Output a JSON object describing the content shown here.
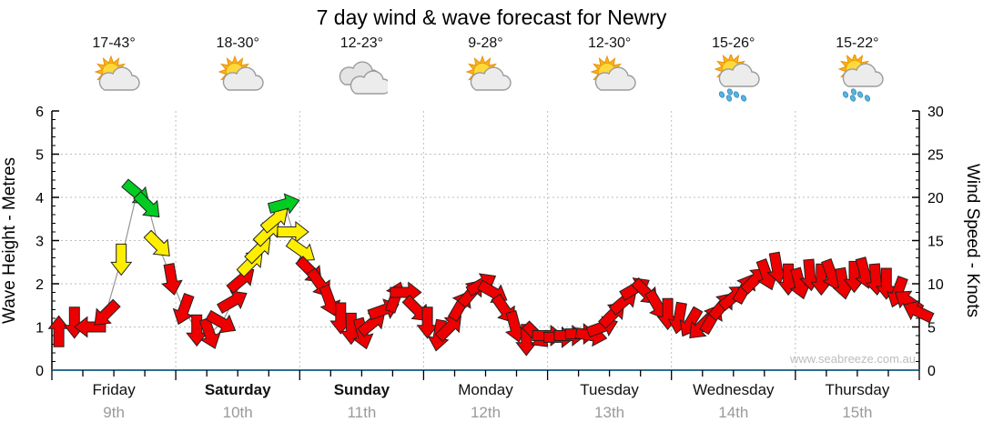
{
  "title": "7 day wind & wave forecast for Newry",
  "watermark": "www.seabreeze.com.au",
  "days": [
    {
      "name": "Friday",
      "date": "9th",
      "temps": "17-43°",
      "icon": "partly-cloudy",
      "weekend": false
    },
    {
      "name": "Saturday",
      "date": "10th",
      "temps": "18-30°",
      "icon": "partly-cloudy",
      "weekend": true
    },
    {
      "name": "Sunday",
      "date": "11th",
      "temps": "12-23°",
      "icon": "cloudy",
      "weekend": true
    },
    {
      "name": "Monday",
      "date": "12th",
      "temps": "9-28°",
      "icon": "partly-cloudy",
      "weekend": false
    },
    {
      "name": "Tuesday",
      "date": "13th",
      "temps": "12-30°",
      "icon": "partly-cloudy",
      "weekend": false
    },
    {
      "name": "Wednesday",
      "date": "14th",
      "temps": "15-26°",
      "icon": "showers",
      "weekend": false
    },
    {
      "name": "Thursday",
      "date": "15th",
      "temps": "15-22°",
      "icon": "showers",
      "weekend": false
    }
  ],
  "chart_data": {
    "type": "wind-arrow-timeseries",
    "title": "7 day wind & wave forecast for Newry",
    "left_axis": {
      "label": "Wave Height - Metres",
      "min": 0,
      "max": 6,
      "major_ticks": [
        0,
        1,
        2,
        3,
        4,
        5,
        6
      ]
    },
    "right_axis": {
      "label": "Wind Speed - Knots",
      "min": 0,
      "max": 30,
      "major_ticks": [
        0,
        5,
        10,
        15,
        20,
        25,
        30
      ]
    },
    "x_categories": [
      "Friday 9th",
      "Saturday 10th",
      "Sunday 11th",
      "Monday 12th",
      "Tuesday 13th",
      "Wednesday 14th",
      "Thursday 15th"
    ],
    "grid": "dotted",
    "band_names": {
      "L": "light",
      "M": "moderate",
      "F": "fresh"
    },
    "speed_colors": {
      "L": "#EE0000",
      "M": "#FFEE00",
      "F": "#00CC22"
    },
    "axis_line_color": "#2E6E8E",
    "arrows_format": [
      "t_fraction_of_week",
      "knots",
      "dir_deg_cw_from_east",
      "band"
    ],
    "arrows": [
      [
        0.008,
        4.5,
        270,
        "L"
      ],
      [
        0.026,
        5.5,
        90,
        "L"
      ],
      [
        0.044,
        5,
        180,
        "L"
      ],
      [
        0.062,
        6.5,
        135,
        "L"
      ],
      [
        0.08,
        12.8,
        90,
        "M"
      ],
      [
        0.098,
        20.5,
        40,
        "F"
      ],
      [
        0.111,
        19,
        45,
        "F"
      ],
      [
        0.123,
        14.5,
        45,
        "M"
      ],
      [
        0.138,
        10.5,
        80,
        "L"
      ],
      [
        0.152,
        7,
        110,
        "L"
      ],
      [
        0.167,
        4.6,
        90,
        "L"
      ],
      [
        0.182,
        4.2,
        70,
        "L"
      ],
      [
        0.196,
        5.5,
        30,
        "L"
      ],
      [
        0.209,
        8,
        330,
        "L"
      ],
      [
        0.219,
        10.5,
        320,
        "L"
      ],
      [
        0.23,
        12.5,
        315,
        "M"
      ],
      [
        0.239,
        14,
        315,
        "M"
      ],
      [
        0.249,
        16,
        315,
        "M"
      ],
      [
        0.258,
        17.5,
        320,
        "M"
      ],
      [
        0.268,
        19.2,
        345,
        "F"
      ],
      [
        0.278,
        16,
        0,
        "M"
      ],
      [
        0.288,
        13.8,
        35,
        "M"
      ],
      [
        0.298,
        11.5,
        45,
        "L"
      ],
      [
        0.309,
        10,
        55,
        "L"
      ],
      [
        0.32,
        8,
        70,
        "L"
      ],
      [
        0.333,
        6,
        90,
        "L"
      ],
      [
        0.345,
        4.8,
        90,
        "L"
      ],
      [
        0.358,
        4.2,
        75,
        "L"
      ],
      [
        0.37,
        5.5,
        320,
        "L"
      ],
      [
        0.383,
        7,
        340,
        "L"
      ],
      [
        0.396,
        8.5,
        290,
        "L"
      ],
      [
        0.408,
        9,
        0,
        "L"
      ],
      [
        0.421,
        7,
        45,
        "L"
      ],
      [
        0.433,
        5.5,
        90,
        "L"
      ],
      [
        0.446,
        4,
        100,
        "L"
      ],
      [
        0.459,
        5,
        315,
        "L"
      ],
      [
        0.471,
        7.5,
        300,
        "L"
      ],
      [
        0.484,
        9,
        310,
        "L"
      ],
      [
        0.496,
        10,
        330,
        "L"
      ],
      [
        0.509,
        9,
        30,
        "L"
      ],
      [
        0.522,
        7,
        55,
        "L"
      ],
      [
        0.534,
        5,
        75,
        "L"
      ],
      [
        0.547,
        3.5,
        90,
        "L"
      ],
      [
        0.559,
        4,
        45,
        "L"
      ],
      [
        0.572,
        4,
        0,
        "L"
      ],
      [
        0.585,
        3.8,
        0,
        "L"
      ],
      [
        0.597,
        4,
        0,
        "L"
      ],
      [
        0.61,
        4.2,
        0,
        "L"
      ],
      [
        0.622,
        4,
        10,
        "L"
      ],
      [
        0.635,
        5,
        340,
        "L"
      ],
      [
        0.647,
        6.5,
        315,
        "L"
      ],
      [
        0.66,
        8,
        320,
        "L"
      ],
      [
        0.673,
        9.5,
        330,
        "L"
      ],
      [
        0.685,
        9,
        45,
        "L"
      ],
      [
        0.698,
        7.5,
        60,
        "L"
      ],
      [
        0.71,
        6.5,
        90,
        "L"
      ],
      [
        0.723,
        6,
        100,
        "L"
      ],
      [
        0.736,
        5.5,
        120,
        "L"
      ],
      [
        0.748,
        5,
        135,
        "L"
      ],
      [
        0.761,
        6,
        300,
        "L"
      ],
      [
        0.773,
        7.5,
        310,
        "L"
      ],
      [
        0.786,
        8.5,
        320,
        "L"
      ],
      [
        0.799,
        9.5,
        300,
        "L"
      ],
      [
        0.811,
        10.5,
        315,
        "L"
      ],
      [
        0.824,
        11,
        70,
        "L"
      ],
      [
        0.836,
        11.8,
        80,
        "L"
      ],
      [
        0.849,
        10.5,
        90,
        "L"
      ],
      [
        0.862,
        10,
        75,
        "L"
      ],
      [
        0.874,
        11,
        85,
        "L"
      ],
      [
        0.887,
        10.5,
        90,
        "L"
      ],
      [
        0.899,
        11,
        70,
        "L"
      ],
      [
        0.912,
        10,
        80,
        "L"
      ],
      [
        0.925,
        10.8,
        90,
        "L"
      ],
      [
        0.937,
        11.2,
        75,
        "L"
      ],
      [
        0.95,
        10.5,
        85,
        "L"
      ],
      [
        0.962,
        10,
        90,
        "L"
      ],
      [
        0.975,
        9,
        110,
        "L"
      ],
      [
        0.987,
        8,
        215,
        "L"
      ],
      [
        0.998,
        6.8,
        205,
        "L"
      ]
    ]
  }
}
